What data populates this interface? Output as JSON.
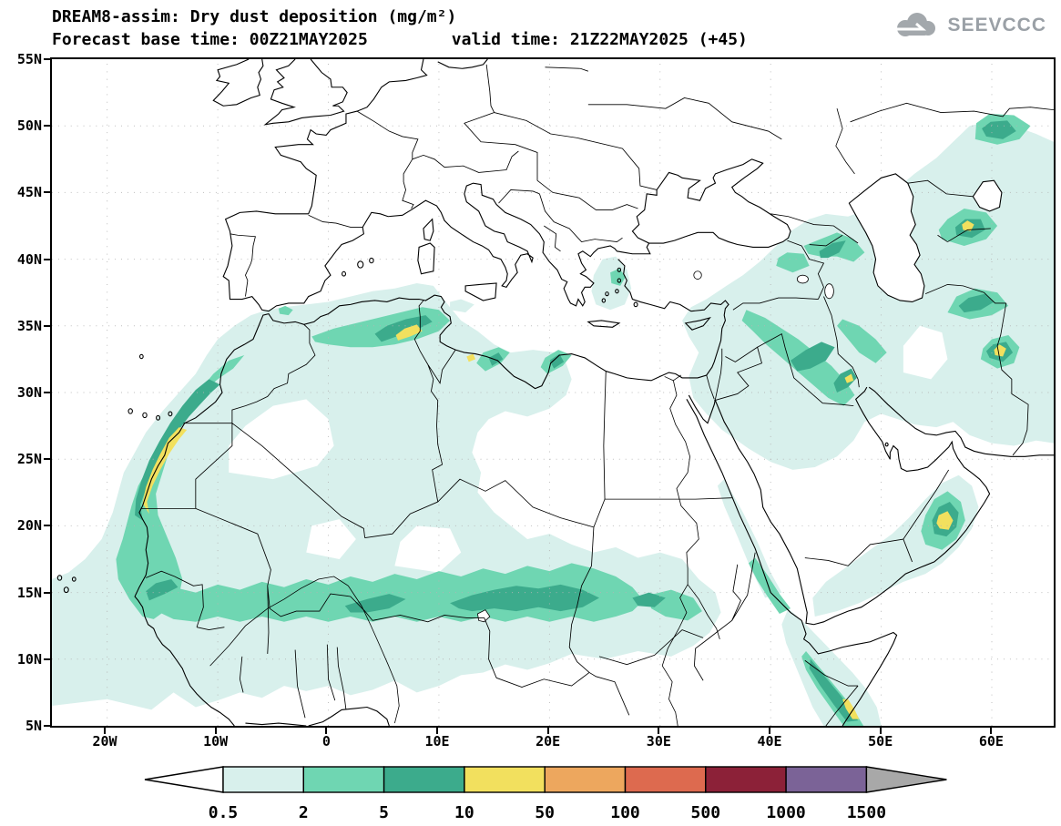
{
  "header": {
    "title": "DREAM8-assim: Dry dust deposition (mg/m²)",
    "subtitle_base": "Forecast base time: 00Z21MAY2025",
    "subtitle_valid": "valid time: 21Z22MAY2025 (+45)",
    "logo_text": "SEEVCCC"
  },
  "axes": {
    "lat_ticks": [
      "55N",
      "50N",
      "45N",
      "40N",
      "35N",
      "30N",
      "25N",
      "20N",
      "15N",
      "10N",
      "5N"
    ],
    "lon_ticks": [
      "20W",
      "10W",
      "0",
      "10E",
      "20E",
      "30E",
      "40E",
      "50E",
      "60E"
    ]
  },
  "colorbar": {
    "labels": [
      "0.5",
      "2",
      "5",
      "10",
      "50",
      "100",
      "500",
      "1000",
      "1500"
    ],
    "colors": [
      "#ffffff",
      "#d8f0ec",
      "#6fd6b2",
      "#3cab8c",
      "#f2e05e",
      "#eda75e",
      "#dd6a4f",
      "#8c2138",
      "#7b6397",
      "#a8a8a8"
    ]
  },
  "chart_data": {
    "type": "filled-contour-map",
    "title": "DREAM8-assim: Dry dust deposition (mg/m²)",
    "variable": "Dry dust deposition",
    "units": "mg/m²",
    "model": "DREAM8-assim",
    "forecast_base_time": "00Z21MAY2025",
    "valid_time": "21Z22MAY2025",
    "forecast_hour": 45,
    "lon_range_deg": [
      -25,
      65
    ],
    "lat_range_deg": [
      5,
      55
    ],
    "contour_levels": [
      0.5,
      2,
      5,
      10,
      50,
      100,
      500,
      1000,
      1500
    ],
    "levels_present_on_map": [
      0.5,
      2,
      5,
      10
    ],
    "legend_position": "bottom",
    "grid": "dotted graticule, 10 deg lon x 5 deg lat",
    "max_band_hotspots": [
      {
        "region": "Western Sahara Atlantic coast",
        "lon": -15.0,
        "lat": 24.0,
        "band": "10-50"
      },
      {
        "region": "NE Algeria",
        "lon": 7.4,
        "lat": 34.4,
        "band": "10-50"
      },
      {
        "region": "NW Libya coast",
        "lon": 13.0,
        "lat": 32.6,
        "band": "10-50"
      },
      {
        "region": "S Iraq / Kuwait",
        "lon": 47.1,
        "lat": 31.0,
        "band": "10-50"
      },
      {
        "region": "E Uzbekistan",
        "lon": 57.8,
        "lat": 42.4,
        "band": "10-50"
      },
      {
        "region": "E Iran",
        "lon": 60.7,
        "lat": 33.1,
        "band": "10-50"
      },
      {
        "region": "Oman",
        "lon": 55.7,
        "lat": 20.4,
        "band": "10-50"
      },
      {
        "region": "NE Somalia coast",
        "lon": 47.2,
        "lat": 6.4,
        "band": "10-50"
      }
    ],
    "broad_bands": [
      {
        "region": "Sahel belt 12N-17N from 17W to 34E",
        "band": "2-10"
      },
      {
        "region": "NW African coast 13N-33N",
        "band": "2-10"
      },
      {
        "region": "Northern Algeria / Tunisia",
        "band": "2-10"
      },
      {
        "region": "Mesopotamia / Zagros / Caucasus / Caspian region",
        "band": "0.5-10"
      },
      {
        "region": "Aegean Sea",
        "band": "0.5-2"
      },
      {
        "region": "Horn of Africa / Gulf of Aden",
        "band": "0.5-10"
      }
    ]
  }
}
